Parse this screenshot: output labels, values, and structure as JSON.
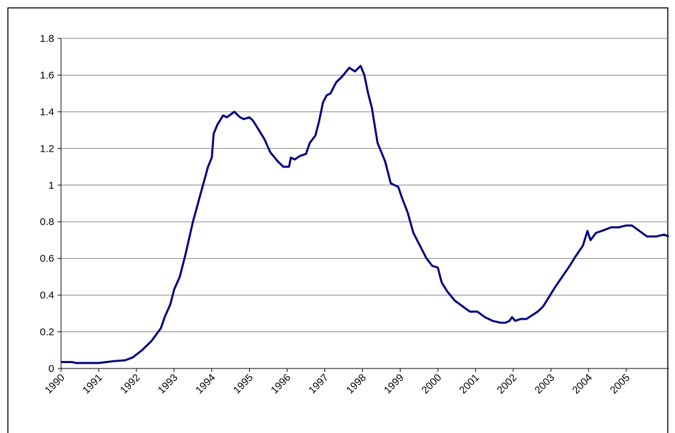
{
  "chart_data": {
    "type": "line",
    "x": [
      1990,
      1990.3,
      1990.4,
      1991,
      1991.2,
      1991.4,
      1991.7,
      1991.9,
      1992.15,
      1992.4,
      1992.65,
      1992.75,
      1992.9,
      1993.0,
      1993.15,
      1993.3,
      1993.5,
      1993.7,
      1993.9,
      1994.0,
      1994.05,
      1994.15,
      1994.3,
      1994.4,
      1994.6,
      1994.75,
      1994.85,
      1995.0,
      1995.1,
      1995.25,
      1995.4,
      1995.55,
      1995.75,
      1995.9,
      1996.05,
      1996.1,
      1996.2,
      1996.35,
      1996.5,
      1996.6,
      1996.75,
      1996.85,
      1996.95,
      1997.05,
      1997.15,
      1997.3,
      1997.45,
      1997.65,
      1997.8,
      1997.95,
      1998.05,
      1998.15,
      1998.25,
      1998.4,
      1998.6,
      1998.75,
      1998.95,
      1999.05,
      1999.2,
      1999.35,
      1999.55,
      1999.7,
      1999.85,
      2000.0,
      2000.1,
      2000.25,
      2000.45,
      2000.65,
      2000.85,
      2001.05,
      2001.25,
      2001.45,
      2001.65,
      2001.8,
      2001.9,
      2001.97,
      2002.05,
      2002.2,
      2002.35,
      2002.5,
      2002.65,
      2002.8,
      2002.95,
      2003.1,
      2003.3,
      2003.5,
      2003.65,
      2003.85,
      2003.97,
      2004.05,
      2004.2,
      2004.35,
      2004.6,
      2004.8,
      2005.0,
      2005.15,
      2005.35,
      2005.55,
      2005.8,
      2006.0,
      2006.13
    ],
    "series": [
      {
        "name": "series",
        "color": "#000080",
        "values": [
          0.035,
          0.035,
          0.03,
          0.03,
          0.035,
          0.04,
          0.045,
          0.06,
          0.1,
          0.15,
          0.22,
          0.28,
          0.35,
          0.43,
          0.5,
          0.62,
          0.8,
          0.95,
          1.1,
          1.15,
          1.28,
          1.33,
          1.38,
          1.37,
          1.4,
          1.37,
          1.36,
          1.37,
          1.35,
          1.3,
          1.25,
          1.18,
          1.13,
          1.1,
          1.1,
          1.15,
          1.14,
          1.16,
          1.17,
          1.23,
          1.27,
          1.35,
          1.45,
          1.49,
          1.5,
          1.56,
          1.59,
          1.64,
          1.62,
          1.65,
          1.6,
          1.5,
          1.42,
          1.23,
          1.13,
          1.01,
          0.99,
          0.93,
          0.85,
          0.74,
          0.66,
          0.6,
          0.56,
          0.55,
          0.47,
          0.42,
          0.37,
          0.34,
          0.31,
          0.31,
          0.28,
          0.26,
          0.25,
          0.25,
          0.26,
          0.28,
          0.26,
          0.27,
          0.27,
          0.29,
          0.31,
          0.34,
          0.39,
          0.44,
          0.5,
          0.56,
          0.61,
          0.67,
          0.75,
          0.7,
          0.74,
          0.75,
          0.77,
          0.77,
          0.78,
          0.78,
          0.75,
          0.72,
          0.72,
          0.73,
          0.72
        ]
      }
    ],
    "xlim": [
      1990,
      2006.13
    ],
    "xticks": [
      1990,
      1991,
      1992,
      1993,
      1994,
      1995,
      1996,
      1997,
      1998,
      1999,
      2000,
      2001,
      2002,
      2003,
      2004,
      2005
    ],
    "ylim": [
      0,
      1.8
    ],
    "yticks": [
      0,
      0.2,
      0.4,
      0.6,
      0.8,
      1,
      1.2,
      1.4,
      1.6,
      1.8
    ],
    "grid": true
  }
}
